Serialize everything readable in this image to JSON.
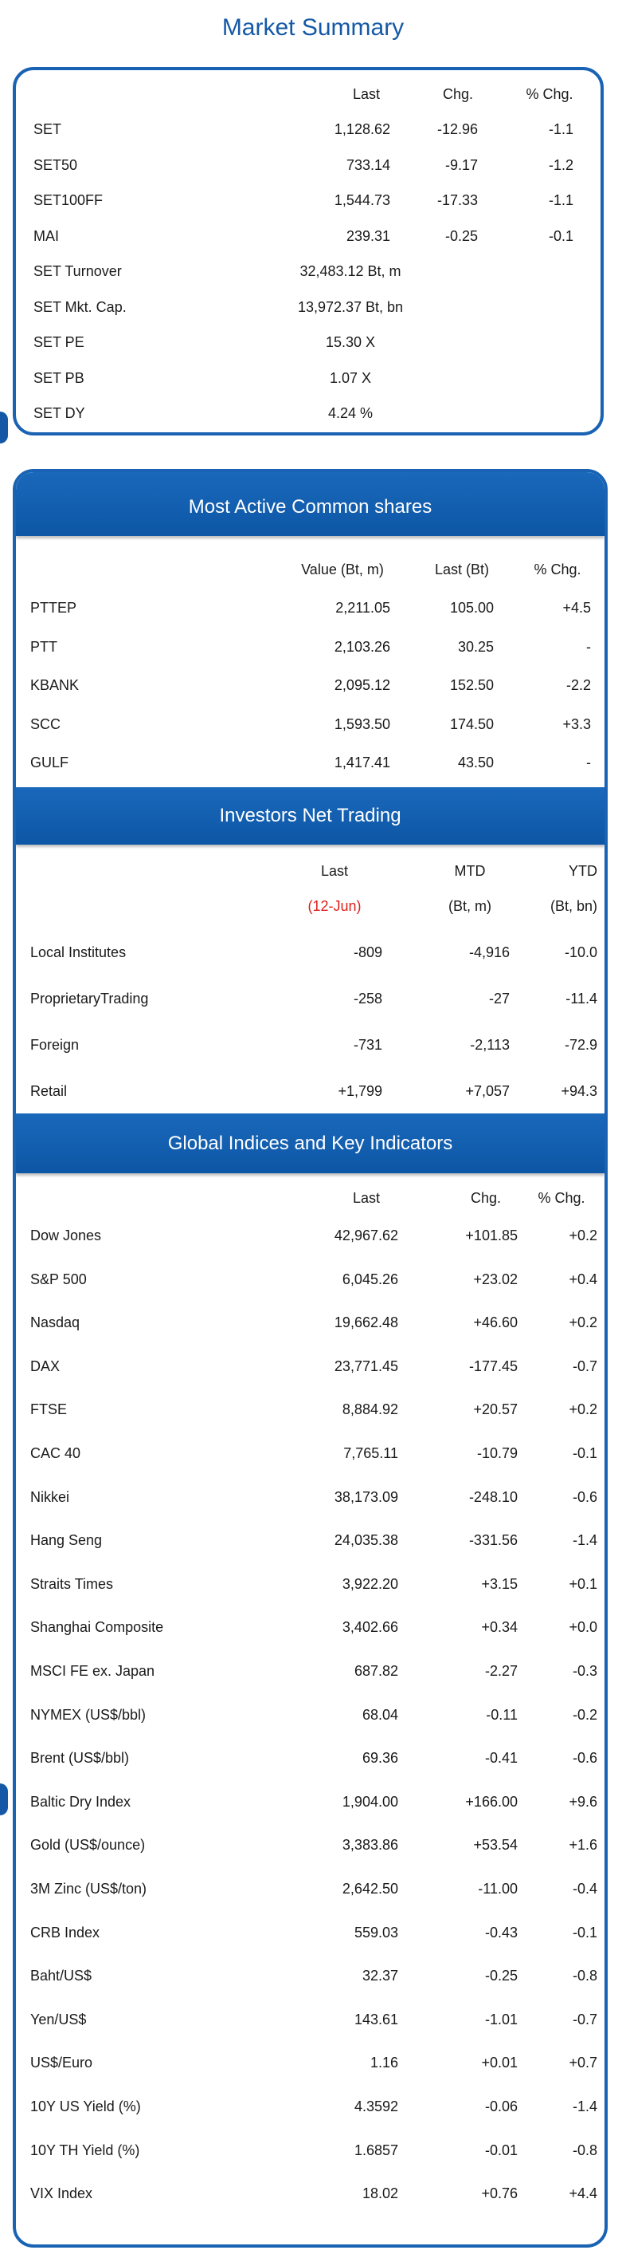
{
  "title": "Market Summary",
  "market_summary": {
    "headers": [
      "Last",
      "Chg.",
      "% Chg."
    ],
    "rows": [
      {
        "name": "SET",
        "last": "1,128.62",
        "chg": "-12.96",
        "pct": "-1.1"
      },
      {
        "name": "SET50",
        "last": "733.14",
        "chg": "-9.17",
        "pct": "-1.2"
      },
      {
        "name": "SET100FF",
        "last": "1,544.73",
        "chg": "-17.33",
        "pct": "-1.1"
      },
      {
        "name": "MAI",
        "last": "239.31",
        "chg": "-0.25",
        "pct": "-0.1"
      },
      {
        "name": "SET Turnover",
        "last": "32,483.12 Bt, m",
        "chg": "",
        "pct": ""
      },
      {
        "name": "SET Mkt. Cap.",
        "last": "13,972.37 Bt, bn",
        "chg": "",
        "pct": ""
      },
      {
        "name": "SET PE",
        "last": "15.30 X",
        "chg": "",
        "pct": ""
      },
      {
        "name": "SET PB",
        "last": "1.07 X",
        "chg": "",
        "pct": ""
      },
      {
        "name": "SET DY",
        "last": "4.24 %",
        "chg": "",
        "pct": ""
      }
    ]
  },
  "most_active": {
    "title": "Most Active Common shares",
    "headers": [
      "Value (Bt, m)",
      "Last (Bt)",
      "% Chg."
    ],
    "rows": [
      {
        "name": "PTTEP",
        "value": "2,211.05",
        "last": "105.00",
        "pct": "+4.5"
      },
      {
        "name": "PTT",
        "value": "2,103.26",
        "last": "30.25",
        "pct": "-"
      },
      {
        "name": "KBANK",
        "value": "2,095.12",
        "last": "152.50",
        "pct": "-2.2"
      },
      {
        "name": "SCC",
        "value": "1,593.50",
        "last": "174.50",
        "pct": "+3.3"
      },
      {
        "name": "GULF",
        "value": "1,417.41",
        "last": "43.50",
        "pct": "-"
      }
    ]
  },
  "investors": {
    "title": "Investors Net Trading",
    "headers": [
      "Last",
      "MTD",
      "YTD"
    ],
    "subheaders": [
      "(12-Jun)",
      "(Bt, m)",
      "(Bt, bn)"
    ],
    "date_color": "#e0201b",
    "rows": [
      {
        "name": "Local Institutes",
        "last": "-809",
        "mtd": "-4,916",
        "ytd": "-10.0"
      },
      {
        "name": "ProprietaryTrading",
        "last": "-258",
        "mtd": "-27",
        "ytd": "-11.4"
      },
      {
        "name": "Foreign",
        "last": "-731",
        "mtd": "-2,113",
        "ytd": "-72.9"
      },
      {
        "name": "Retail",
        "last": "+1,799",
        "mtd": "+7,057",
        "ytd": "+94.3"
      }
    ]
  },
  "global": {
    "title": "Global Indices and Key Indicators",
    "headers": [
      "Last",
      "Chg.",
      "% Chg."
    ],
    "rows": [
      {
        "name": "Dow Jones",
        "last": "42,967.62",
        "chg": "+101.85",
        "pct": "+0.2"
      },
      {
        "name": "S&P 500",
        "last": "6,045.26",
        "chg": "+23.02",
        "pct": "+0.4"
      },
      {
        "name": "Nasdaq",
        "last": "19,662.48",
        "chg": "+46.60",
        "pct": "+0.2"
      },
      {
        "name": "DAX",
        "last": "23,771.45",
        "chg": "-177.45",
        "pct": "-0.7"
      },
      {
        "name": "FTSE",
        "last": "8,884.92",
        "chg": "+20.57",
        "pct": "+0.2"
      },
      {
        "name": "CAC 40",
        "last": "7,765.11",
        "chg": "-10.79",
        "pct": "-0.1"
      },
      {
        "name": "Nikkei",
        "last": "38,173.09",
        "chg": "-248.10",
        "pct": "-0.6"
      },
      {
        "name": "Hang Seng",
        "last": "24,035.38",
        "chg": "-331.56",
        "pct": "-1.4"
      },
      {
        "name": "Straits Times",
        "last": "3,922.20",
        "chg": "+3.15",
        "pct": "+0.1"
      },
      {
        "name": "Shanghai Composite",
        "last": "3,402.66",
        "chg": "+0.34",
        "pct": "+0.0"
      },
      {
        "name": "MSCI FE ex. Japan",
        "last": "687.82",
        "chg": "-2.27",
        "pct": "-0.3"
      },
      {
        "name": "NYMEX (US$/bbl)",
        "last": "68.04",
        "chg": "-0.11",
        "pct": "-0.2"
      },
      {
        "name": "Brent (US$/bbl)",
        "last": "69.36",
        "chg": "-0.41",
        "pct": "-0.6"
      },
      {
        "name": "Baltic Dry Index",
        "last": "1,904.00",
        "chg": "+166.00",
        "pct": "+9.6"
      },
      {
        "name": "Gold (US$/ounce)",
        "last": "3,383.86",
        "chg": "+53.54",
        "pct": "+1.6"
      },
      {
        "name": "3M Zinc (US$/ton)",
        "last": "2,642.50",
        "chg": "-11.00",
        "pct": "-0.4"
      },
      {
        "name": "CRB Index",
        "last": "559.03",
        "chg": "-0.43",
        "pct": "-0.1"
      },
      {
        "name": "Baht/US$",
        "last": "32.37",
        "chg": "-0.25",
        "pct": "-0.8"
      },
      {
        "name": "Yen/US$",
        "last": "143.61",
        "chg": "-1.01",
        "pct": "-0.7"
      },
      {
        "name": "US$/Euro",
        "last": "1.16",
        "chg": "+0.01",
        "pct": "+0.7"
      },
      {
        "name": "10Y US Yield (%)",
        "last": "4.3592",
        "chg": "-0.06",
        "pct": "-1.4"
      },
      {
        "name": "10Y TH Yield (%)",
        "last": "1.6857",
        "chg": "-0.01",
        "pct": "-0.8"
      },
      {
        "name": "VIX Index",
        "last": "18.02",
        "chg": "+0.76",
        "pct": "+4.4"
      }
    ]
  },
  "colors": {
    "accent": "#1a63b4",
    "title": "#1559a6",
    "negative_date": "#e0201b"
  }
}
